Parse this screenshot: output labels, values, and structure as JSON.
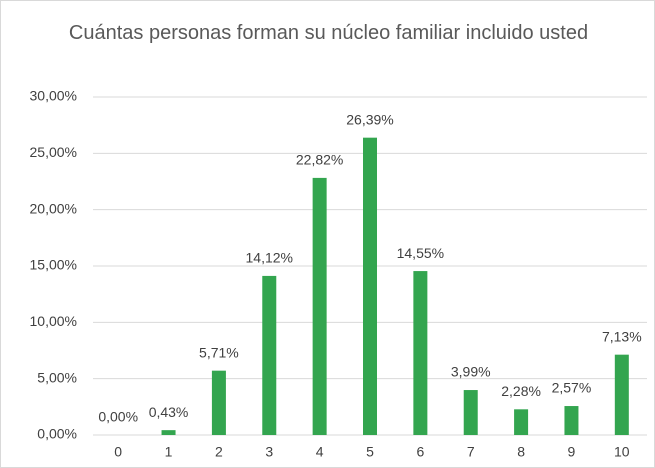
{
  "chart_data": {
    "type": "bar",
    "title": "Cuántas personas forman su núcleo familiar incluido usted",
    "categories": [
      "0",
      "1",
      "2",
      "3",
      "4",
      "5",
      "6",
      "7",
      "8",
      "9",
      "10"
    ],
    "values": [
      0,
      0.43,
      5.71,
      14.12,
      22.82,
      26.39,
      14.55,
      3.99,
      2.28,
      2.57,
      7.13
    ],
    "value_labels": [
      "0,00%",
      "0,43%",
      "5,71%",
      "14,12%",
      "22,82%",
      "26,39%",
      "14,55%",
      "3,99%",
      "2,28%",
      "2,57%",
      "7,13%"
    ],
    "color": "#33a54f",
    "ylim": [
      0,
      30
    ],
    "yticks": [
      {
        "value": 0,
        "label": "0,00%"
      },
      {
        "value": 5,
        "label": "5,00%"
      },
      {
        "value": 10,
        "label": "10,00%"
      },
      {
        "value": 15,
        "label": "15,00%"
      },
      {
        "value": 20,
        "label": "20,00%"
      },
      {
        "value": 25,
        "label": "25,00%"
      },
      {
        "value": 30,
        "label": "30,00%"
      }
    ],
    "grid": true
  }
}
